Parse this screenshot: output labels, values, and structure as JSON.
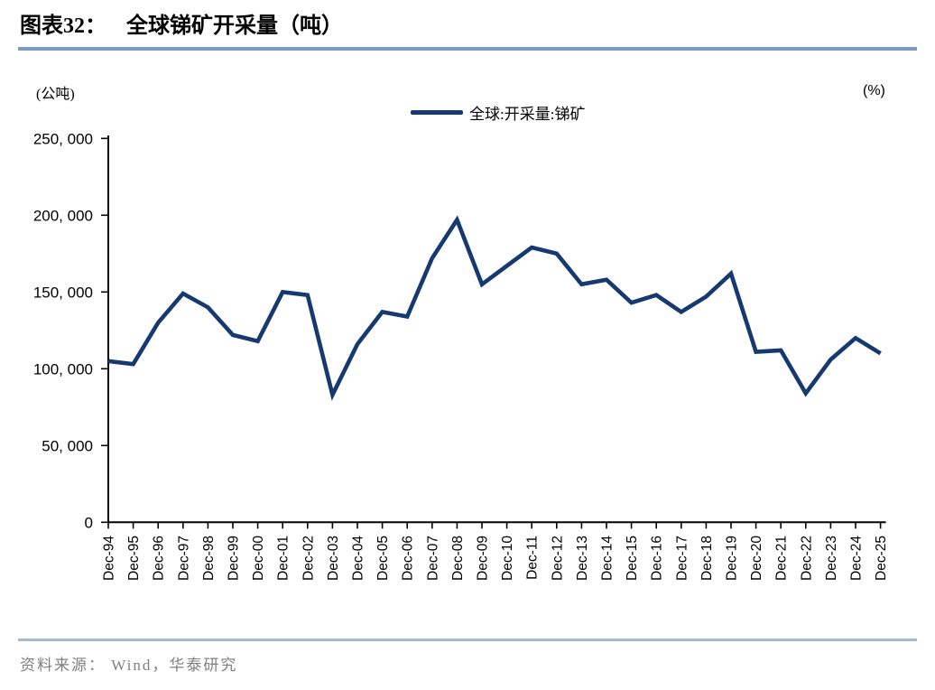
{
  "header": {
    "figure_label": "图表32：",
    "title": "全球锑矿开采量（吨）",
    "rule_color": "#7d9bc1"
  },
  "chart_data": {
    "type": "line",
    "title": "全球锑矿开采量（吨）",
    "unit_left": "(公吨)",
    "unit_right": "(%)",
    "legend_position": "top-center",
    "grid": false,
    "ylim": [
      0,
      250000
    ],
    "yticks": [
      0,
      50000,
      100000,
      150000,
      200000,
      250000
    ],
    "ytick_labels": [
      "0",
      "50, 000",
      "100, 000",
      "150, 000",
      "200, 000",
      "250, 000"
    ],
    "x": [
      "Dec-94",
      "Dec-95",
      "Dec-96",
      "Dec-97",
      "Dec-98",
      "Dec-99",
      "Dec-00",
      "Dec-01",
      "Dec-02",
      "Dec-03",
      "Dec-04",
      "Dec-05",
      "Dec-06",
      "Dec-07",
      "Dec-08",
      "Dec-09",
      "Dec-10",
      "Dec-11",
      "Dec-12",
      "Dec-13",
      "Dec-14",
      "Dec-15",
      "Dec-16",
      "Dec-17",
      "Dec-18",
      "Dec-19",
      "Dec-20",
      "Dec-21",
      "Dec-22",
      "Dec-23",
      "Dec-24",
      "Dec-25"
    ],
    "series": [
      {
        "name": "全球:开采量:锑矿",
        "color": "#163a6f",
        "values": [
          105000,
          103000,
          130000,
          149000,
          140000,
          122000,
          118000,
          150000,
          148000,
          83000,
          116000,
          137000,
          134000,
          172000,
          197000,
          155000,
          167000,
          179000,
          175000,
          155000,
          158000,
          143000,
          148000,
          137000,
          147000,
          162000,
          111000,
          112000,
          84000,
          106000,
          120000,
          110000
        ]
      }
    ],
    "axis_color": "#000000"
  },
  "footer": {
    "source": "资料来源： Wind，华泰研究",
    "rule_color": "#a6bacf",
    "text_color": "#7f7f7f"
  }
}
